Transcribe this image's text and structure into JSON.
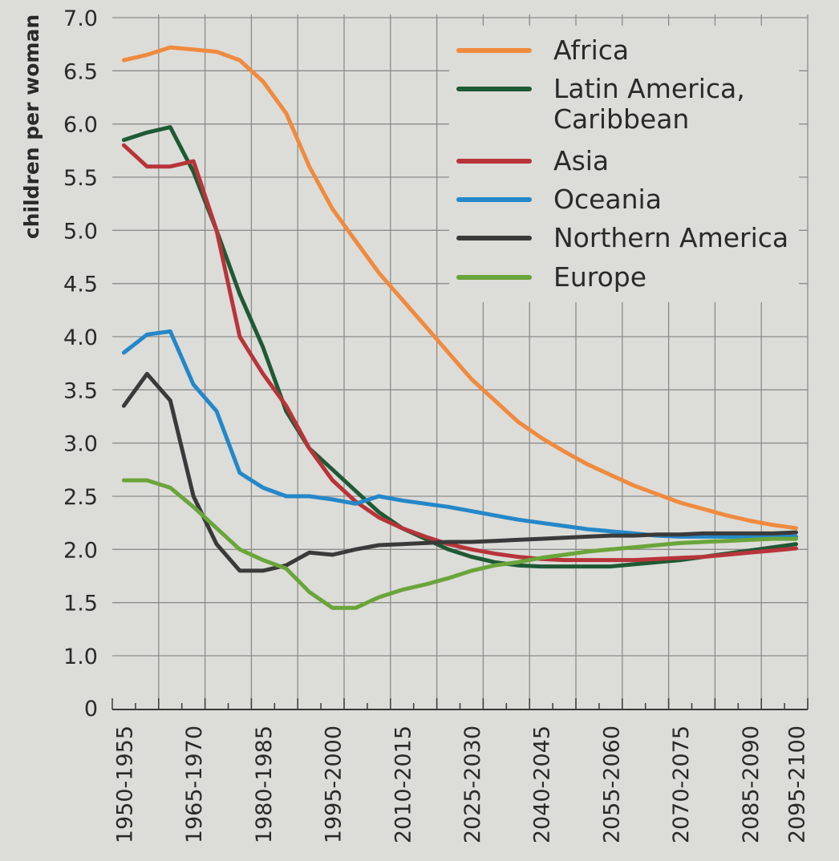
{
  "chart_data": {
    "type": "line",
    "ylabel": "children per woman",
    "ylim": [
      0,
      7.0
    ],
    "y_ticks": [
      "0",
      "1.0",
      "1.5",
      "2.0",
      "2.5",
      "3.0",
      "3.5",
      "4.0",
      "4.5",
      "5.0",
      "5.5",
      "6.0",
      "6.5",
      "7.0"
    ],
    "x": [
      1952.5,
      1957.5,
      1962.5,
      1967.5,
      1972.5,
      1977.5,
      1982.5,
      1987.5,
      1992.5,
      1997.5,
      2002.5,
      2007.5,
      2012.5,
      2017.5,
      2022.5,
      2027.5,
      2032.5,
      2037.5,
      2042.5,
      2047.5,
      2052.5,
      2057.5,
      2062.5,
      2067.5,
      2072.5,
      2077.5,
      2082.5,
      2087.5,
      2092.5,
      2097.5
    ],
    "x_tick_labels": [
      "1950-1955",
      "1965-1970",
      "1980-1985",
      "1995-2000",
      "2010-2015",
      "2025-2030",
      "2040-2045",
      "2055-2060",
      "2070-2075",
      "2085-2090",
      "2095-2100"
    ],
    "grid": true,
    "legend_position": "top-right",
    "series": [
      {
        "name": "Africa",
        "color": "#f08a3e",
        "values": [
          6.6,
          6.65,
          6.72,
          6.7,
          6.68,
          6.6,
          6.4,
          6.1,
          5.6,
          5.2,
          4.9,
          4.6,
          4.35,
          4.1,
          3.85,
          3.6,
          3.4,
          3.2,
          3.05,
          2.92,
          2.8,
          2.7,
          2.6,
          2.52,
          2.44,
          2.38,
          2.32,
          2.27,
          2.23,
          2.2
        ]
      },
      {
        "name": "Latin America,\nCaribbean",
        "color": "#1e5a34",
        "values": [
          5.85,
          5.92,
          5.97,
          5.55,
          5.0,
          4.4,
          3.9,
          3.3,
          2.95,
          2.75,
          2.55,
          2.35,
          2.2,
          2.1,
          2.0,
          1.93,
          1.88,
          1.85,
          1.84,
          1.84,
          1.84,
          1.84,
          1.86,
          1.88,
          1.9,
          1.93,
          1.96,
          1.99,
          2.02,
          2.05
        ]
      },
      {
        "name": "Asia",
        "color": "#b8343a",
        "values": [
          5.8,
          5.6,
          5.6,
          5.65,
          5.0,
          4.0,
          3.65,
          3.35,
          2.95,
          2.65,
          2.45,
          2.3,
          2.2,
          2.12,
          2.05,
          2.0,
          1.96,
          1.93,
          1.91,
          1.9,
          1.9,
          1.9,
          1.9,
          1.91,
          1.92,
          1.93,
          1.95,
          1.97,
          1.99,
          2.01
        ]
      },
      {
        "name": "Oceania",
        "color": "#2487c9",
        "values": [
          3.85,
          4.02,
          4.05,
          3.55,
          3.3,
          2.72,
          2.58,
          2.5,
          2.5,
          2.47,
          2.43,
          2.5,
          2.46,
          2.43,
          2.4,
          2.36,
          2.32,
          2.28,
          2.25,
          2.22,
          2.19,
          2.17,
          2.15,
          2.13,
          2.12,
          2.12,
          2.12,
          2.12,
          2.12,
          2.12
        ]
      },
      {
        "name": "Northern America",
        "color": "#3a3a3a",
        "values": [
          3.35,
          3.65,
          3.4,
          2.5,
          2.05,
          1.8,
          1.8,
          1.85,
          1.97,
          1.95,
          2.0,
          2.04,
          2.05,
          2.06,
          2.07,
          2.07,
          2.08,
          2.09,
          2.1,
          2.11,
          2.12,
          2.13,
          2.13,
          2.14,
          2.14,
          2.15,
          2.15,
          2.15,
          2.15,
          2.16
        ]
      },
      {
        "name": "Europe",
        "color": "#6aa53a",
        "values": [
          2.65,
          2.65,
          2.58,
          2.4,
          2.2,
          2.0,
          1.9,
          1.82,
          1.6,
          1.45,
          1.45,
          1.55,
          1.62,
          1.67,
          1.73,
          1.8,
          1.85,
          1.88,
          1.92,
          1.95,
          1.98,
          2.0,
          2.02,
          2.04,
          2.06,
          2.07,
          2.08,
          2.09,
          2.1,
          2.1
        ]
      }
    ]
  }
}
